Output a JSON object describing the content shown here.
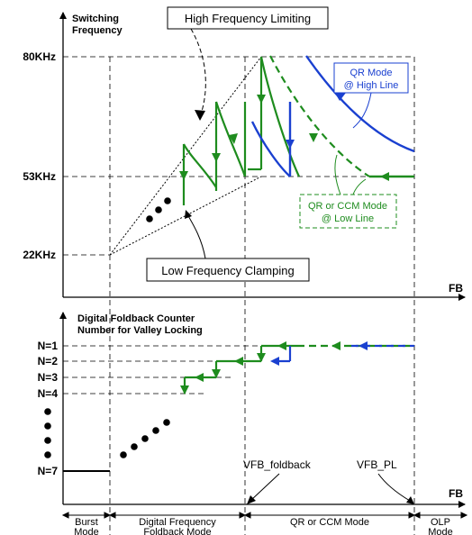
{
  "top": {
    "y_title_line1": "Switching",
    "y_title_line2": "Frequency",
    "y_ticks": [
      "80KHz",
      "53KHz",
      "22KHz"
    ],
    "x_label": "FB",
    "box_high": "High Frequency Limiting",
    "box_low": "Low Frequency Clamping",
    "qr_high_line1": "QR Mode",
    "qr_high_line2": "@ High Line",
    "qr_low_line1": "QR or CCM Mode",
    "qr_low_line2": "@ Low Line"
  },
  "bottom": {
    "y_title_line1": "Digital Foldback Counter",
    "y_title_line2": "Number for Valley Locking",
    "y_ticks": [
      "N=1",
      "N=2",
      "N=3",
      "N=4",
      "N=7"
    ],
    "x_label": "FB",
    "vfb_foldback": "VFB_foldback",
    "vfb_pl": "VFB_PL"
  },
  "modes": [
    {
      "line1": "Burst",
      "line2": "Mode"
    },
    {
      "line1": "Digital Frequency",
      "line2": "Foldback Mode"
    },
    {
      "line1": "QR or CCM Mode",
      "line2": ""
    },
    {
      "line1": "OLP",
      "line2": "Mode"
    }
  ],
  "colors": {
    "green": "#1e8c1e",
    "blue": "#1a40d0",
    "black": "#000000"
  }
}
